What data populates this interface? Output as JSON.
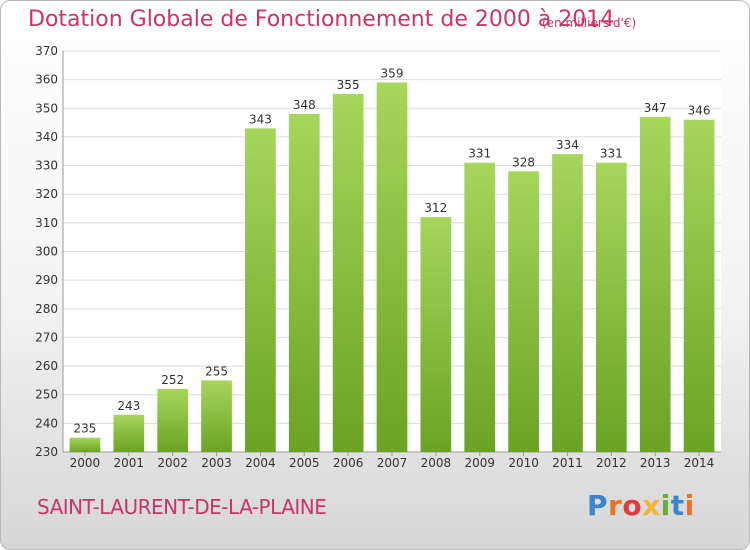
{
  "header": {
    "title": "Dotation Globale de Fonctionnement de 2000 à 2014",
    "unit": "(en milliers d'€)"
  },
  "footer": {
    "commune": "SAINT-LAURENT-DE-LA-PLAINE",
    "logo_text": "Proxiti"
  },
  "colors": {
    "title": "#c8356c",
    "bar_light": "#a6d65c",
    "bar_dark": "#6ba324",
    "grid": "#dcdcdc",
    "axis_text": "#333333"
  },
  "chart_data": {
    "type": "bar",
    "title": "Dotation Globale de Fonctionnement de 2000 à 2014",
    "categories": [
      "2000",
      "2001",
      "2002",
      "2003",
      "2004",
      "2005",
      "2006",
      "2007",
      "2008",
      "2009",
      "2010",
      "2011",
      "2012",
      "2013",
      "2014"
    ],
    "values": [
      235,
      243,
      252,
      255,
      343,
      348,
      355,
      359,
      312,
      331,
      328,
      334,
      331,
      347,
      346
    ],
    "ylim": [
      230,
      370
    ],
    "yticks": [
      230,
      240,
      250,
      260,
      270,
      280,
      290,
      300,
      310,
      320,
      330,
      340,
      350,
      360,
      370
    ],
    "grid": true,
    "data_labels": true
  }
}
